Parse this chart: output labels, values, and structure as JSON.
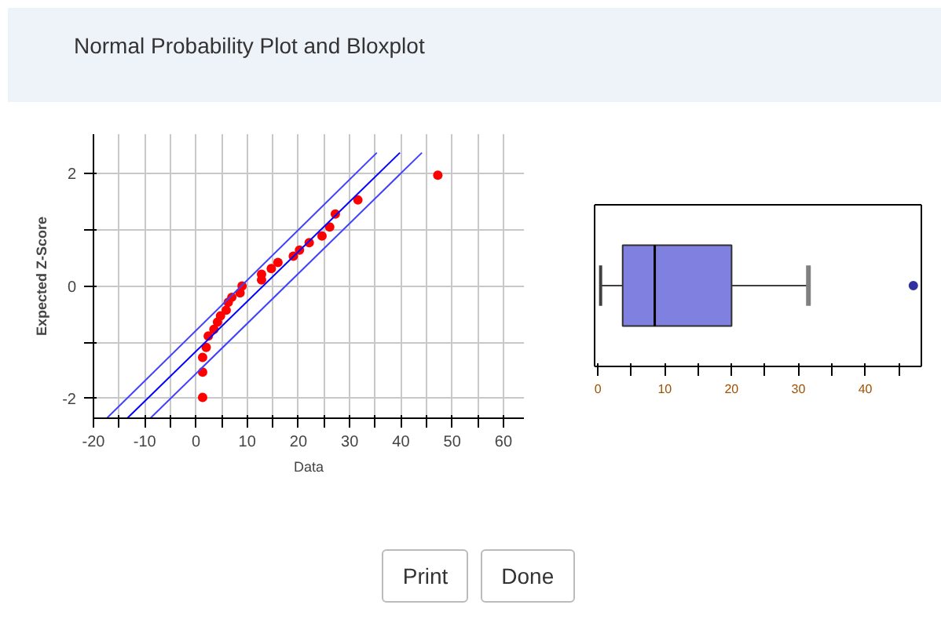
{
  "chart_data": [
    {
      "type": "scatter",
      "title": "Normal Probability Plot and Bloxplot",
      "xlabel": "Data",
      "ylabel": "Expected Z-Score",
      "xlim": [
        -20,
        64
      ],
      "ylim": [
        -2.35,
        2.7
      ],
      "xticks": [
        -20,
        {
          "value": -15,
          "label": null
        },
        -10,
        {
          "value": -5,
          "label": null
        },
        0,
        {
          "value": 5,
          "label": null
        },
        10,
        {
          "value": 15,
          "label": null
        },
        20,
        {
          "value": 25,
          "label": null
        },
        30,
        {
          "value": 35,
          "label": null
        },
        40,
        {
          "value": 45,
          "label": null
        },
        50,
        {
          "value": 55,
          "label": null
        },
        60
      ],
      "yticks": [
        -2,
        {
          "value": -1,
          "label": null
        },
        0,
        {
          "value": 1,
          "label": null
        },
        2
      ],
      "grid": true,
      "series": [
        {
          "type": "scatter",
          "marker": "circle",
          "color": "#ff0000",
          "x": [
            1.3,
            1.3,
            1.3,
            2.0,
            2.4,
            3.5,
            4.2,
            4.8,
            5.9,
            6.3,
            7.0,
            8.6,
            9.0,
            12.8,
            12.8,
            14.7,
            16.0,
            19.0,
            20.2,
            22.1,
            24.6,
            26.1,
            27.2,
            31.6,
            47.2
          ],
          "values": [
            -1.98,
            -1.53,
            -1.27,
            -1.09,
            -0.89,
            -0.77,
            -0.64,
            -0.53,
            -0.43,
            -0.29,
            -0.2,
            -0.12,
            0.0,
            0.11,
            0.21,
            0.31,
            0.42,
            0.53,
            0.64,
            0.77,
            0.89,
            1.05,
            1.28,
            1.53,
            1.97
          ]
        },
        {
          "type": "line",
          "marker": "none",
          "color": "#4040ff",
          "x": [
            -17.4,
            35.3
          ],
          "values": [
            -2.35,
            2.37
          ]
        },
        {
          "type": "line",
          "marker": "none",
          "color": "#0000ff",
          "x": [
            -13.4,
            39.8
          ],
          "values": [
            -2.35,
            2.37
          ]
        },
        {
          "type": "line",
          "marker": "none",
          "color": "#4040ff",
          "x": [
            -8.9,
            44.1
          ],
          "values": [
            -2.35,
            2.37
          ]
        }
      ],
      "annotations": [
        "Print",
        "Done"
      ]
    },
    {
      "type": "box",
      "orientation": "horizontal",
      "categories": [
        null
      ],
      "xlim": [
        -0.5,
        48.4
      ],
      "xticks": [
        0,
        {
          "value": 5,
          "label": null
        },
        10,
        {
          "value": 15,
          "label": null
        },
        20,
        {
          "value": 25,
          "label": null
        },
        30,
        {
          "value": 35,
          "label": null
        },
        40,
        {
          "value": 45,
          "label": null
        }
      ],
      "series": [
        {
          "color": "#8080e0",
          "boxes": [
            {
              "low": 0.4,
              "q1": 3.7,
              "median": 8.5,
              "q3": 20,
              "high": 31.5,
              "outliers": [
                47.2
              ]
            }
          ]
        }
      ]
    }
  ]
}
